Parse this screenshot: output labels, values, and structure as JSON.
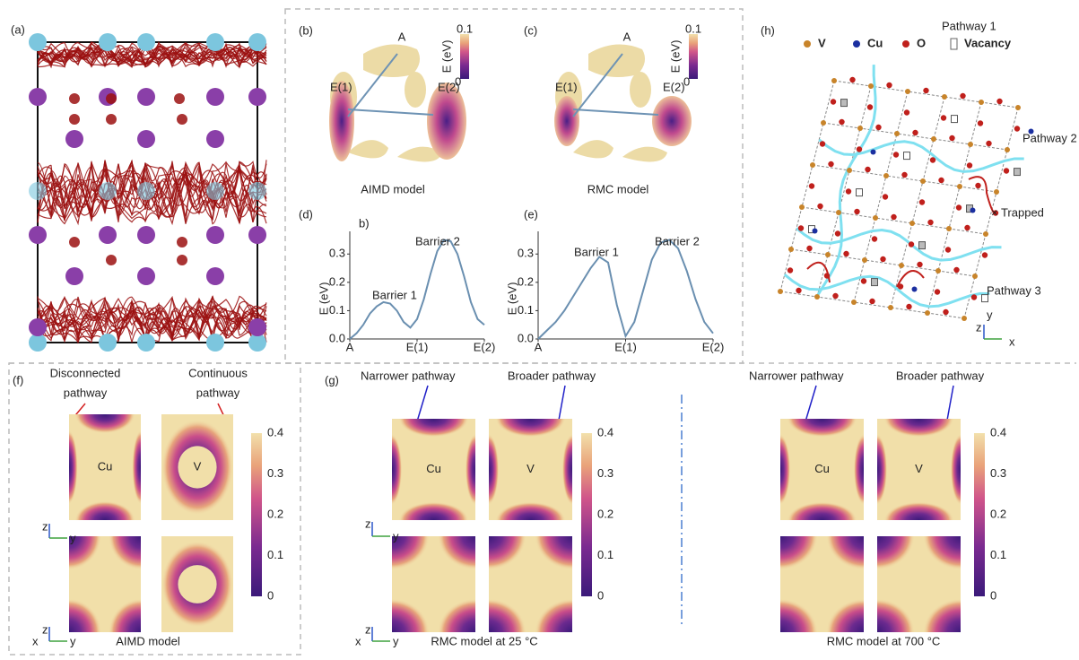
{
  "panels": {
    "a": {
      "label": "(a)"
    },
    "b": {
      "label": "(b)",
      "sites": [
        "A",
        "E(1)",
        "E(2)"
      ],
      "colorbar": {
        "max": "0.1",
        "min": "0",
        "title": "E (eV)"
      },
      "caption": "AIMD model"
    },
    "c": {
      "label": "(c)",
      "sites": [
        "A",
        "E(1)",
        "E(2)"
      ],
      "colorbar": {
        "max": "0.1",
        "min": "0",
        "title": "E (eV)"
      },
      "caption": "RMC model"
    },
    "d": {
      "label": "(d)"
    },
    "e": {
      "label": "(e)"
    },
    "h": {
      "label": "(h)",
      "legend": [
        "V",
        "Cu",
        "O",
        "Vacancy"
      ],
      "pathways": [
        "Pathway 1",
        "Pathway 2",
        "Pathway 3"
      ],
      "trapped": "× Trapped",
      "axes": [
        "z",
        "y",
        "x"
      ]
    },
    "f": {
      "label": "(f)",
      "notes": [
        [
          "Disconnected",
          "pathway"
        ],
        [
          "Continuous",
          "pathway"
        ]
      ],
      "maps": [
        "Cu",
        "V"
      ],
      "colorbar_ticks": [
        "0.4",
        "0.3",
        "0.2",
        "0.1",
        "0"
      ],
      "caption": "AIMD model",
      "axes": [
        "z",
        "y",
        "x"
      ]
    },
    "g": {
      "label": "(g)",
      "colorbar_ticks": [
        "0.4",
        "0.3",
        "0.2",
        "0.1",
        "0"
      ],
      "axes": [
        "z",
        "y",
        "x"
      ],
      "groups": [
        {
          "notes": [
            "Narrower pathway",
            "Broader pathway"
          ],
          "maps": [
            "Cu",
            "V"
          ],
          "caption": "RMC model at 25 °C"
        },
        {
          "notes": [
            "Narrower pathway",
            "Broader pathway"
          ],
          "maps": [
            "Cu",
            "V"
          ],
          "caption": "RMC model at 700 °C"
        }
      ]
    }
  },
  "chart_data": [
    {
      "type": "line",
      "ylabel": "E (eV)",
      "annotations": [
        "b)",
        "Barrier 1",
        "Barrier 2"
      ],
      "x": [
        0,
        0.1,
        0.2,
        0.3,
        0.4,
        0.5,
        0.6,
        0.7,
        0.8,
        0.9,
        1.0,
        1.1,
        1.2,
        1.3,
        1.4,
        1.5,
        1.6,
        1.7,
        1.8,
        1.9,
        2.0
      ],
      "series": [
        {
          "color": "#6a8fb0",
          "values": [
            0.0,
            0.02,
            0.05,
            0.09,
            0.115,
            0.13,
            0.125,
            0.1,
            0.06,
            0.04,
            0.07,
            0.14,
            0.23,
            0.31,
            0.35,
            0.345,
            0.3,
            0.22,
            0.13,
            0.07,
            0.05
          ]
        }
      ],
      "xlim": [
        0,
        2
      ],
      "xticks": [
        {
          "value": 0,
          "label": "A"
        },
        {
          "value": 1,
          "label": "E(1)"
        },
        {
          "value": 2,
          "label": "E(2)"
        }
      ],
      "ylim": [
        0,
        0.38
      ],
      "yticks": [
        {
          "value": 0,
          "label": "0.0"
        },
        0.1,
        0.2,
        0.3
      ]
    },
    {
      "type": "line",
      "ylabel": "E (eV)",
      "annotations": [
        "Barrier 1",
        "Barrier 2"
      ],
      "x": [
        0,
        0.1,
        0.2,
        0.3,
        0.4,
        0.5,
        0.6,
        0.7,
        0.8,
        0.9,
        1.0,
        1.1,
        1.2,
        1.3,
        1.4,
        1.5,
        1.6,
        1.7,
        1.8,
        1.9,
        2.0
      ],
      "series": [
        {
          "color": "#6a8fb0",
          "values": [
            0.0,
            0.03,
            0.06,
            0.1,
            0.15,
            0.2,
            0.25,
            0.29,
            0.27,
            0.12,
            0.01,
            0.06,
            0.17,
            0.28,
            0.34,
            0.35,
            0.32,
            0.24,
            0.14,
            0.06,
            0.02
          ]
        }
      ],
      "xlim": [
        0,
        2
      ],
      "xticks": [
        {
          "value": 0,
          "label": "A"
        },
        {
          "value": 1,
          "label": "E(1)"
        },
        {
          "value": 2,
          "label": "E(2)"
        }
      ],
      "ylim": [
        0,
        0.38
      ],
      "yticks": [
        {
          "value": 0,
          "label": "0.0"
        },
        0.1,
        0.2,
        0.3
      ]
    }
  ]
}
